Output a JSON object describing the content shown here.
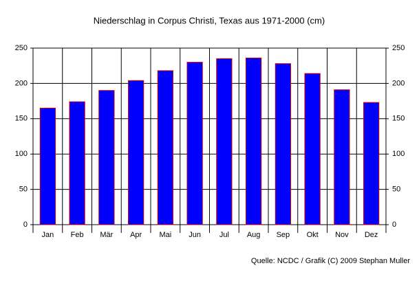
{
  "chart_data": {
    "type": "bar",
    "title": "Niederschlag in Corpus Christi, Texas aus 1971-2000 (cm)",
    "categories": [
      "Jan",
      "Feb",
      "Mär",
      "Apr",
      "Mai",
      "Jun",
      "Jul",
      "Aug",
      "Sep",
      "Okt",
      "Nov",
      "Dez"
    ],
    "values": [
      165,
      174,
      190,
      204,
      218,
      230,
      235,
      236,
      228,
      214,
      191,
      173
    ],
    "color": "#0000ff",
    "edge_color": "#cc0000",
    "ylim": [
      0,
      250
    ],
    "yticks": [
      0,
      50,
      100,
      150,
      200,
      250
    ],
    "y2lim": [
      0,
      250
    ],
    "y2ticks": [
      0,
      50,
      100,
      150,
      200,
      250
    ],
    "grid": true,
    "source": "Quelle: NCDC / Grafik (C) 2009 Stephan Muller"
  }
}
